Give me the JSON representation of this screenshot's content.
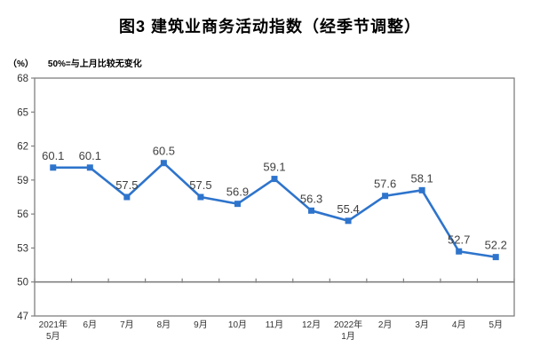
{
  "title": "图3 建筑业商务活动指数（经季节调整）",
  "unit_label": "（%）",
  "note": "50%=与上月比较无变化",
  "colors": {
    "line": "#2E74CC",
    "marker": "#2E74CC",
    "axis": "#808080",
    "data_label": "#404040",
    "tick_text": "#333333",
    "title_text": "#000000"
  },
  "chart_data": {
    "type": "line",
    "title": "图3 建筑业商务活动指数（经季节调整）",
    "ylabel": "（%）",
    "note": "50%=与上月比较无变化",
    "categories": [
      [
        "2021年",
        "5月"
      ],
      [
        "6月"
      ],
      [
        "7月"
      ],
      [
        "8月"
      ],
      [
        "9月"
      ],
      [
        "10月"
      ],
      [
        "11月"
      ],
      [
        "12月"
      ],
      [
        "2022年",
        "1月"
      ],
      [
        "2月"
      ],
      [
        "3月"
      ],
      [
        "4月"
      ],
      [
        "5月"
      ]
    ],
    "values": [
      60.1,
      60.1,
      57.5,
      60.5,
      57.5,
      56.9,
      59.1,
      56.3,
      55.4,
      57.6,
      58.1,
      52.7,
      52.2
    ],
    "ylim": [
      47,
      68
    ],
    "yticks": [
      68,
      65,
      62,
      59,
      56,
      53,
      50,
      47
    ],
    "reference_line": 50,
    "grid": false,
    "legend": null,
    "marker_shape": "square"
  }
}
